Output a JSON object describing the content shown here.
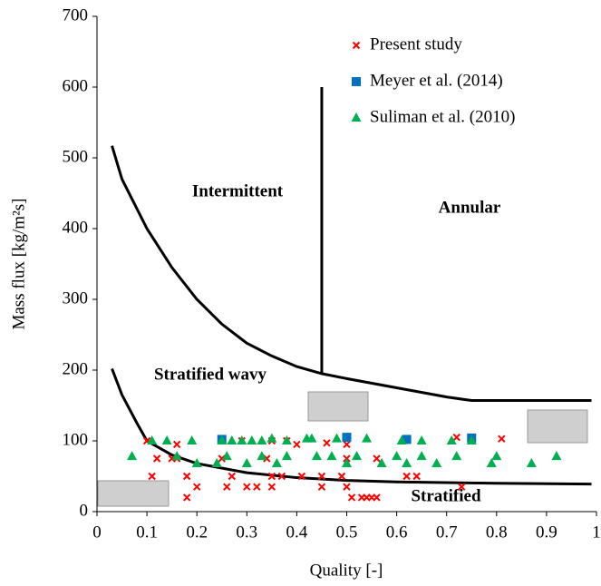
{
  "chart_data": {
    "type": "scatter",
    "x_label": "Quality [-]",
    "y_label": "Mass flux [kg/m²s]",
    "xlim": [
      0,
      1
    ],
    "ylim": [
      0,
      700
    ],
    "xticks": [
      0,
      0.1,
      0.2,
      0.3,
      0.4,
      0.5,
      0.6,
      0.7,
      0.8,
      0.9,
      1
    ],
    "yticks": [
      0,
      100,
      200,
      300,
      400,
      500,
      600,
      700
    ],
    "legend": "upper right",
    "annotations": [
      "Intermittent",
      "Annular",
      "Stratified wavy",
      "Stratified"
    ],
    "series": [
      {
        "name": "Present study",
        "color": "#ff0000",
        "marker": "x",
        "x": [
          0.1,
          0.11,
          0.12,
          0.15,
          0.16,
          0.16,
          0.18,
          0.18,
          0.2,
          0.25,
          0.25,
          0.26,
          0.27,
          0.29,
          0.3,
          0.32,
          0.34,
          0.35,
          0.35,
          0.35,
          0.37,
          0.38,
          0.4,
          0.41,
          0.45,
          0.45,
          0.46,
          0.49,
          0.5,
          0.5,
          0.5,
          0.51,
          0.53,
          0.54,
          0.55,
          0.56,
          0.56,
          0.62,
          0.64,
          0.72,
          0.73,
          0.81
        ],
        "values": [
          100,
          50,
          75,
          75,
          95,
          75,
          50,
          20,
          35,
          75,
          100,
          35,
          50,
          100,
          35,
          35,
          75,
          100,
          50,
          35,
          50,
          100,
          95,
          50,
          50,
          35,
          97,
          50,
          75,
          95,
          35,
          20,
          20,
          20,
          20,
          75,
          20,
          50,
          50,
          105,
          35,
          103
        ]
      },
      {
        "name": "Meyer et al. (2014)",
        "color": "#0070c0",
        "marker": "square",
        "x": [
          0.25,
          0.5,
          0.62,
          0.75
        ],
        "values": [
          102,
          105,
          102,
          104
        ]
      },
      {
        "name": "Suliman et al. (2010)",
        "color": "#00b050",
        "marker": "triangle",
        "x": [
          0.07,
          0.11,
          0.14,
          0.16,
          0.19,
          0.2,
          0.24,
          0.25,
          0.26,
          0.27,
          0.29,
          0.3,
          0.31,
          0.33,
          0.33,
          0.35,
          0.36,
          0.38,
          0.38,
          0.42,
          0.43,
          0.44,
          0.47,
          0.48,
          0.5,
          0.52,
          0.54,
          0.57,
          0.6,
          0.61,
          0.62,
          0.65,
          0.65,
          0.68,
          0.71,
          0.72,
          0.75,
          0.79,
          0.8,
          0.87,
          0.92
        ],
        "values": [
          78,
          100,
          100,
          78,
          100,
          68,
          68,
          100,
          78,
          100,
          100,
          68,
          100,
          78,
          100,
          103,
          68,
          78,
          100,
          103,
          103,
          78,
          78,
          103,
          68,
          78,
          103,
          68,
          78,
          100,
          68,
          100,
          78,
          68,
          100,
          78,
          100,
          68,
          78,
          68,
          78
        ]
      }
    ],
    "boundaries": [
      {
        "color": "#000000",
        "x": [
          0.03,
          0.05,
          0.1,
          0.15,
          0.2,
          0.25,
          0.3,
          0.35,
          0.4,
          0.45,
          0.5,
          0.6,
          0.7,
          0.75,
          0.8,
          0.99
        ],
        "values": [
          517,
          470,
          400,
          345,
          300,
          265,
          238,
          220,
          205,
          195,
          188,
          175,
          162,
          157,
          157,
          157
        ]
      },
      {
        "color": "#000000",
        "x": [
          0.45,
          0.45
        ],
        "values": [
          195,
          600
        ]
      },
      {
        "color": "#000000",
        "x": [
          0.03,
          0.05,
          0.08,
          0.1,
          0.15,
          0.2,
          0.3,
          0.4,
          0.5,
          0.6,
          0.8,
          0.99
        ],
        "values": [
          202,
          165,
          125,
          100,
          80,
          68,
          55,
          48,
          44,
          42,
          40,
          39
        ]
      }
    ]
  }
}
